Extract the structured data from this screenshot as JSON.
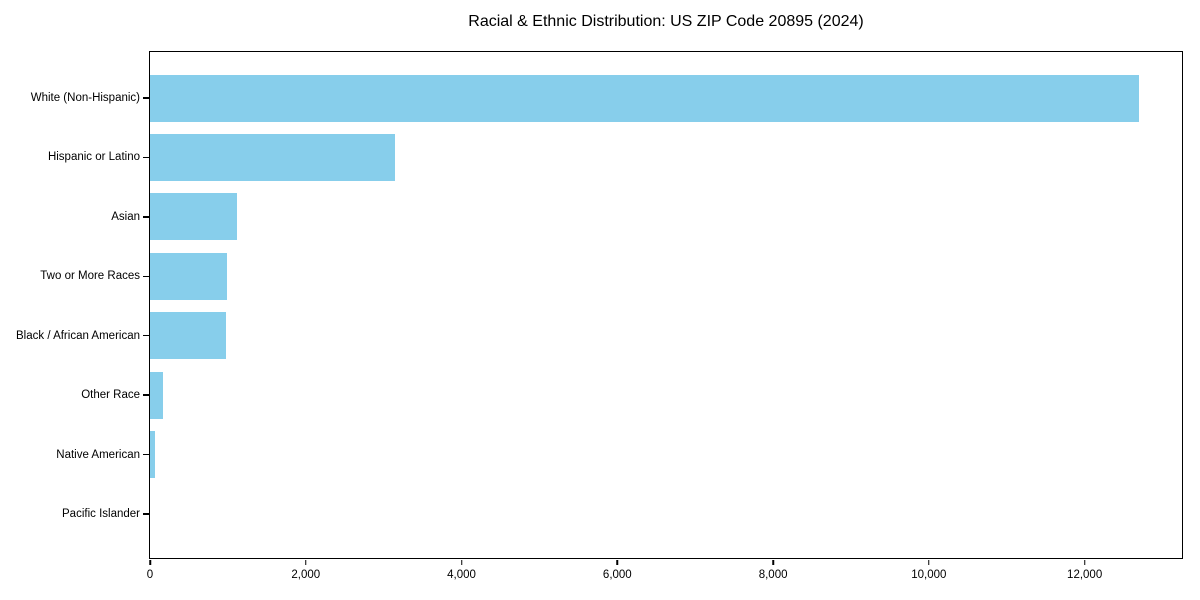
{
  "chart_data": {
    "type": "bar",
    "orientation": "horizontal",
    "title": "Racial & Ethnic Distribution: US ZIP Code 20895 (2024)",
    "categories": [
      "White (Non-Hispanic)",
      "Hispanic or Latino",
      "Asian",
      "Two or More Races",
      "Black / African American",
      "Other Race",
      "Native American",
      "Pacific Islander"
    ],
    "values": [
      12700,
      3150,
      1120,
      990,
      980,
      170,
      60,
      0
    ],
    "xlabel": "",
    "ylabel": "",
    "xlim": [
      0,
      13250
    ],
    "x_ticks": [
      0,
      2000,
      4000,
      6000,
      8000,
      10000,
      12000
    ],
    "x_tick_labels": [
      "0",
      "2,000",
      "4,000",
      "6,000",
      "8,000",
      "10,000",
      "12,000"
    ],
    "bar_color": "#87CEEB",
    "grid": false,
    "legend": null,
    "frame": true,
    "background_color": "#ffffff",
    "text_color": "#000000"
  }
}
